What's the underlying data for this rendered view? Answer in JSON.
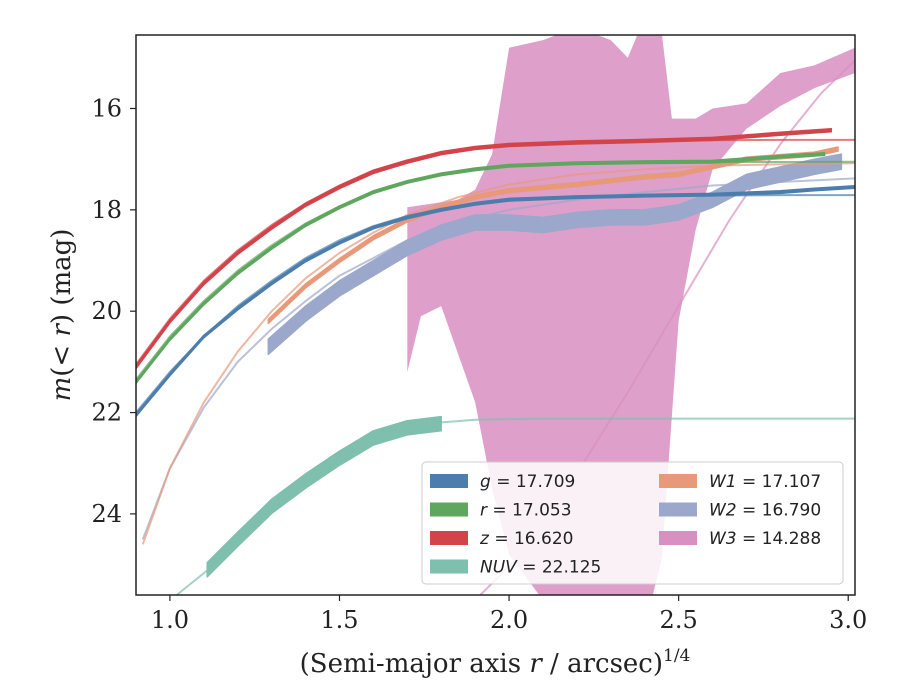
{
  "chart_data": {
    "type": "line",
    "xlabel_main": "(Semi-major axis ",
    "xlabel_var": "r",
    "xlabel_unit": " / arcsec)",
    "xlabel_exp": "1/4",
    "ylabel_m": "m",
    "ylabel_paren_open": "(",
    "ylabel_lt": "< ",
    "ylabel_r": "r",
    "ylabel_rest": ") (mag)",
    "xlim": [
      0.9,
      3.02
    ],
    "ylim": [
      25.6,
      14.55
    ],
    "y_inverted": true,
    "xticks": [
      1.0,
      1.5,
      2.0,
      2.5,
      3.0
    ],
    "xtick_labels": [
      "1.0",
      "1.5",
      "2.0",
      "2.5",
      "3.0"
    ],
    "yticks": [
      16,
      18,
      20,
      22,
      24
    ],
    "ytick_labels": [
      "16",
      "18",
      "20",
      "22",
      "24"
    ],
    "grid": false,
    "legend_placement": "lower-right",
    "series": [
      {
        "key": "W3",
        "band": "W3",
        "name": "W3 = 14.288",
        "color": "#d88fc1",
        "upper": [
          [
            1.7,
            17.95
          ],
          [
            1.85,
            17.8
          ],
          [
            1.9,
            17.6
          ],
          [
            1.95,
            16.9
          ],
          [
            2.0,
            14.8
          ],
          [
            2.1,
            14.65
          ],
          [
            2.2,
            14.4
          ],
          [
            2.3,
            14.65
          ],
          [
            2.35,
            15.0
          ],
          [
            2.4,
            14.2
          ],
          [
            2.45,
            14.5
          ],
          [
            2.48,
            16.2
          ],
          [
            2.55,
            16.2
          ],
          [
            2.6,
            16.0
          ],
          [
            2.7,
            15.9
          ],
          [
            2.8,
            15.3
          ],
          [
            2.9,
            15.15
          ],
          [
            3.02,
            14.8
          ]
        ],
        "lower": [
          [
            3.02,
            15.3
          ],
          [
            2.9,
            15.6
          ],
          [
            2.8,
            15.95
          ],
          [
            2.7,
            16.4
          ],
          [
            2.6,
            17.2
          ],
          [
            2.55,
            18.4
          ],
          [
            2.5,
            20.2
          ],
          [
            2.45,
            24.9
          ],
          [
            2.42,
            25.7
          ],
          [
            2.1,
            25.7
          ],
          [
            2.0,
            24.8
          ],
          [
            1.95,
            23.5
          ],
          [
            1.9,
            21.8
          ],
          [
            1.8,
            19.9
          ],
          [
            1.74,
            20.1
          ],
          [
            1.7,
            21.2
          ]
        ],
        "model": [
          [
            1.9,
            25.7
          ],
          [
            2.05,
            24.7
          ],
          [
            2.2,
            23.2
          ],
          [
            2.35,
            21.6
          ],
          [
            2.5,
            19.9
          ],
          [
            2.65,
            18.2
          ],
          [
            2.8,
            16.7
          ],
          [
            2.92,
            15.7
          ],
          [
            3.02,
            15.05
          ]
        ]
      },
      {
        "key": "NUV",
        "band": "NUV",
        "name": "NUV = 22.125",
        "color": "#7fbfad",
        "data": [
          [
            1.11,
            25.1
          ],
          [
            1.2,
            24.5
          ],
          [
            1.3,
            23.85
          ],
          [
            1.4,
            23.35
          ],
          [
            1.5,
            22.9
          ],
          [
            1.6,
            22.5
          ],
          [
            1.7,
            22.3
          ],
          [
            1.8,
            22.22
          ]
        ],
        "width": 0.28,
        "model": [
          [
            1.02,
            25.6
          ],
          [
            1.15,
            24.9
          ],
          [
            1.3,
            23.85
          ],
          [
            1.45,
            23.0
          ],
          [
            1.6,
            22.45
          ],
          [
            1.75,
            22.22
          ],
          [
            1.9,
            22.14
          ],
          [
            2.1,
            22.12
          ],
          [
            2.5,
            22.12
          ],
          [
            3.02,
            22.12
          ]
        ]
      },
      {
        "key": "W2",
        "band": "W2",
        "name": "W2 = 16.790",
        "color": "#9ba8cb",
        "data": [
          [
            1.29,
            20.7
          ],
          [
            1.4,
            20.05
          ],
          [
            1.5,
            19.55
          ],
          [
            1.6,
            19.15
          ],
          [
            1.7,
            18.75
          ],
          [
            1.8,
            18.45
          ],
          [
            1.9,
            18.25
          ],
          [
            2.0,
            18.25
          ],
          [
            2.1,
            18.3
          ],
          [
            2.2,
            18.2
          ],
          [
            2.3,
            18.15
          ],
          [
            2.4,
            18.15
          ],
          [
            2.5,
            18.05
          ],
          [
            2.6,
            17.8
          ],
          [
            2.7,
            17.45
          ],
          [
            2.8,
            17.3
          ],
          [
            2.9,
            17.15
          ],
          [
            2.98,
            17.05
          ]
        ],
        "width": 0.3,
        "model": [
          [
            0.92,
            24.5
          ],
          [
            1.0,
            23.1
          ],
          [
            1.1,
            21.9
          ],
          [
            1.2,
            21.0
          ],
          [
            1.3,
            20.35
          ],
          [
            1.4,
            19.8
          ],
          [
            1.5,
            19.3
          ],
          [
            1.6,
            18.95
          ],
          [
            1.7,
            18.6
          ],
          [
            1.85,
            18.25
          ],
          [
            2.0,
            18.0
          ],
          [
            2.2,
            17.8
          ],
          [
            2.4,
            17.65
          ],
          [
            2.6,
            17.52
          ],
          [
            2.8,
            17.45
          ],
          [
            3.02,
            17.38
          ]
        ]
      },
      {
        "key": "W1",
        "band": "W1",
        "name": "W1 = 17.107",
        "color": "#e8997a",
        "data": [
          [
            1.29,
            20.2
          ],
          [
            1.4,
            19.5
          ],
          [
            1.5,
            19.0
          ],
          [
            1.6,
            18.55
          ],
          [
            1.7,
            18.2
          ],
          [
            1.8,
            17.95
          ],
          [
            1.9,
            17.75
          ],
          [
            2.0,
            17.62
          ],
          [
            2.2,
            17.5
          ],
          [
            2.4,
            17.35
          ],
          [
            2.5,
            17.3
          ],
          [
            2.6,
            17.15
          ],
          [
            2.7,
            17.0
          ],
          [
            2.8,
            16.95
          ],
          [
            2.9,
            16.9
          ],
          [
            2.97,
            16.8
          ]
        ],
        "width": 0.08,
        "model": [
          [
            0.92,
            24.6
          ],
          [
            1.0,
            23.1
          ],
          [
            1.1,
            21.8
          ],
          [
            1.2,
            20.8
          ],
          [
            1.3,
            20.0
          ],
          [
            1.4,
            19.35
          ],
          [
            1.5,
            18.85
          ],
          [
            1.6,
            18.45
          ],
          [
            1.7,
            18.1
          ],
          [
            1.85,
            17.75
          ],
          [
            2.0,
            17.5
          ],
          [
            2.2,
            17.3
          ],
          [
            2.4,
            17.2
          ],
          [
            2.6,
            17.13
          ],
          [
            2.8,
            17.1
          ],
          [
            3.02,
            17.08
          ]
        ]
      },
      {
        "key": "g",
        "band": "g",
        "name": "g = 17.709",
        "color": "#4c7ead",
        "data": [
          [
            0.9,
            22.05
          ],
          [
            1.0,
            21.25
          ],
          [
            1.1,
            20.5
          ],
          [
            1.2,
            19.95
          ],
          [
            1.3,
            19.45
          ],
          [
            1.4,
            19.0
          ],
          [
            1.5,
            18.65
          ],
          [
            1.6,
            18.35
          ],
          [
            1.7,
            18.15
          ],
          [
            1.8,
            18.0
          ],
          [
            1.9,
            17.88
          ],
          [
            2.0,
            17.8
          ],
          [
            2.2,
            17.75
          ],
          [
            2.4,
            17.72
          ],
          [
            2.6,
            17.7
          ],
          [
            2.8,
            17.65
          ],
          [
            2.9,
            17.6
          ],
          [
            3.02,
            17.55
          ]
        ],
        "width": 0.05,
        "model": [
          [
            0.9,
            22.0
          ],
          [
            1.0,
            21.2
          ],
          [
            1.1,
            20.5
          ],
          [
            1.2,
            19.9
          ],
          [
            1.3,
            19.4
          ],
          [
            1.4,
            18.95
          ],
          [
            1.5,
            18.6
          ],
          [
            1.6,
            18.32
          ],
          [
            1.7,
            18.12
          ],
          [
            1.8,
            17.98
          ],
          [
            2.0,
            17.82
          ],
          [
            2.2,
            17.75
          ],
          [
            2.5,
            17.72
          ],
          [
            2.8,
            17.71
          ],
          [
            3.02,
            17.71
          ]
        ]
      },
      {
        "key": "r",
        "band": "r",
        "name": "r = 17.053",
        "color": "#5fa65f",
        "data": [
          [
            0.9,
            21.4
          ],
          [
            1.0,
            20.55
          ],
          [
            1.1,
            19.85
          ],
          [
            1.2,
            19.25
          ],
          [
            1.3,
            18.75
          ],
          [
            1.4,
            18.3
          ],
          [
            1.5,
            17.95
          ],
          [
            1.6,
            17.65
          ],
          [
            1.7,
            17.45
          ],
          [
            1.8,
            17.3
          ],
          [
            1.9,
            17.2
          ],
          [
            2.0,
            17.13
          ],
          [
            2.2,
            17.08
          ],
          [
            2.4,
            17.06
          ],
          [
            2.6,
            17.05
          ],
          [
            2.8,
            16.95
          ],
          [
            2.93,
            16.9
          ]
        ],
        "width": 0.05,
        "model": [
          [
            0.9,
            21.35
          ],
          [
            1.0,
            20.5
          ],
          [
            1.1,
            19.8
          ],
          [
            1.2,
            19.2
          ],
          [
            1.3,
            18.7
          ],
          [
            1.4,
            18.27
          ],
          [
            1.5,
            17.93
          ],
          [
            1.6,
            17.63
          ],
          [
            1.7,
            17.43
          ],
          [
            1.8,
            17.28
          ],
          [
            2.0,
            17.12
          ],
          [
            2.2,
            17.07
          ],
          [
            2.5,
            17.06
          ],
          [
            2.8,
            17.055
          ],
          [
            3.02,
            17.053
          ]
        ]
      },
      {
        "key": "z",
        "band": "z",
        "name": "z = 16.620",
        "color": "#d2444a",
        "data": [
          [
            0.9,
            21.1
          ],
          [
            1.0,
            20.2
          ],
          [
            1.1,
            19.45
          ],
          [
            1.2,
            18.85
          ],
          [
            1.3,
            18.35
          ],
          [
            1.4,
            17.9
          ],
          [
            1.5,
            17.55
          ],
          [
            1.6,
            17.25
          ],
          [
            1.7,
            17.05
          ],
          [
            1.8,
            16.88
          ],
          [
            1.9,
            16.78
          ],
          [
            2.0,
            16.72
          ],
          [
            2.2,
            16.67
          ],
          [
            2.4,
            16.64
          ],
          [
            2.6,
            16.6
          ],
          [
            2.8,
            16.5
          ],
          [
            2.95,
            16.43
          ]
        ],
        "width": 0.06,
        "model": [
          [
            0.9,
            21.05
          ],
          [
            1.0,
            20.15
          ],
          [
            1.1,
            19.4
          ],
          [
            1.2,
            18.8
          ],
          [
            1.3,
            18.3
          ],
          [
            1.4,
            17.87
          ],
          [
            1.5,
            17.52
          ],
          [
            1.6,
            17.22
          ],
          [
            1.7,
            17.02
          ],
          [
            1.8,
            16.86
          ],
          [
            2.0,
            16.71
          ],
          [
            2.2,
            16.66
          ],
          [
            2.5,
            16.63
          ],
          [
            2.8,
            16.62
          ],
          [
            3.02,
            16.62
          ]
        ]
      }
    ],
    "legend": {
      "col1": [
        {
          "key": "g",
          "var": "g",
          "value": " = 17.709"
        },
        {
          "key": "r",
          "var": "r",
          "value": " = 17.053"
        },
        {
          "key": "z",
          "var": "z",
          "value": " = 16.620"
        },
        {
          "key": "NUV",
          "var": "NUV",
          "value": " = 22.125"
        }
      ],
      "col2": [
        {
          "key": "W1",
          "var": "W1",
          "value": " = 17.107"
        },
        {
          "key": "W2",
          "var": "W2",
          "value": " = 16.790"
        },
        {
          "key": "W3",
          "var": "W3",
          "value": " = 14.288"
        }
      ]
    }
  }
}
